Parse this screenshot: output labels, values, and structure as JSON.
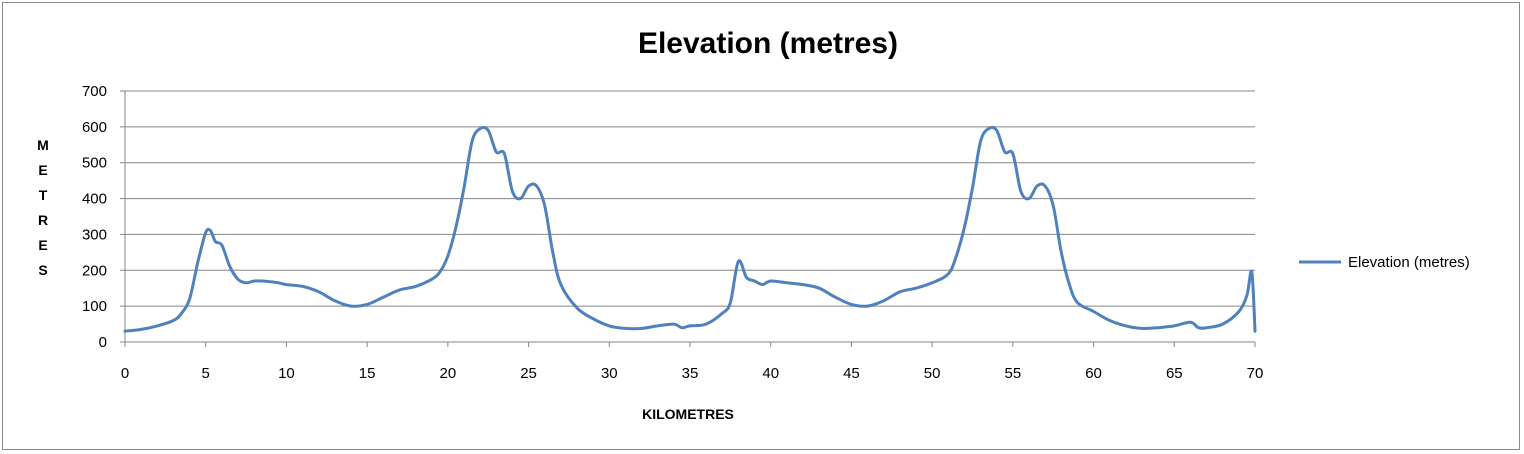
{
  "chart_data": {
    "type": "line",
    "title": "Elevation (metres)",
    "xlabel": "KILOMETRES",
    "ylabel": "METRES",
    "xlim": [
      0,
      70
    ],
    "ylim": [
      0,
      700
    ],
    "xticks": [
      0,
      5,
      10,
      15,
      20,
      25,
      30,
      35,
      40,
      45,
      50,
      55,
      60,
      65,
      70
    ],
    "yticks": [
      0,
      100,
      200,
      300,
      400,
      500,
      600,
      700
    ],
    "grid": "horizontal",
    "legend_position": "right",
    "series": [
      {
        "name": "Elevation (metres)",
        "color": "#4f81bd",
        "x": [
          0,
          1,
          2,
          3,
          3.5,
          4,
          4.5,
          5,
          5.3,
          5.6,
          6,
          6.5,
          7,
          7.5,
          8,
          8.5,
          9,
          9.5,
          10,
          11,
          12,
          13,
          14,
          15,
          16,
          17,
          18,
          19,
          19.5,
          20,
          20.5,
          21,
          21.5,
          22,
          22.5,
          23,
          23.5,
          24,
          24.5,
          25,
          25.5,
          26,
          26.5,
          27,
          28,
          29,
          30,
          31,
          32,
          33,
          34,
          34.5,
          35,
          36,
          37,
          37.5,
          38,
          38.5,
          39,
          39.5,
          40,
          41,
          42,
          43,
          44,
          45,
          46,
          47,
          48,
          49,
          50,
          51,
          51.5,
          52,
          52.5,
          53,
          53.5,
          54,
          54.5,
          55,
          55.5,
          56,
          56.5,
          57,
          57.5,
          58,
          58.5,
          59,
          60,
          61,
          62,
          63,
          64,
          65,
          66,
          66.5,
          67,
          68,
          69,
          69.5,
          69.8,
          70
        ],
        "y": [
          30,
          35,
          45,
          60,
          80,
          120,
          220,
          305,
          310,
          280,
          270,
          210,
          175,
          165,
          170,
          170,
          168,
          165,
          160,
          155,
          140,
          115,
          100,
          105,
          125,
          145,
          155,
          175,
          195,
          240,
          320,
          430,
          560,
          595,
          590,
          530,
          525,
          420,
          400,
          435,
          435,
          380,
          250,
          160,
          95,
          65,
          45,
          38,
          38,
          45,
          50,
          40,
          45,
          50,
          80,
          110,
          225,
          180,
          170,
          160,
          170,
          165,
          160,
          150,
          125,
          105,
          100,
          115,
          140,
          150,
          165,
          190,
          240,
          320,
          430,
          560,
          595,
          590,
          530,
          525,
          420,
          400,
          435,
          435,
          380,
          250,
          160,
          110,
          85,
          60,
          45,
          38,
          40,
          45,
          55,
          40,
          40,
          50,
          85,
          130,
          195,
          30
        ]
      }
    ]
  }
}
